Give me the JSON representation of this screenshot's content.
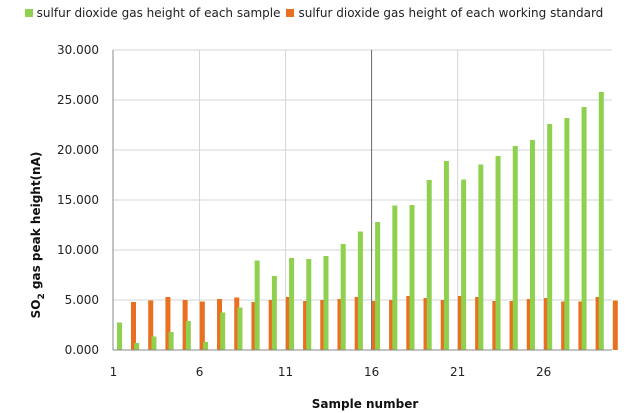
{
  "chart_data": {
    "type": "bar",
    "title": "",
    "xlabel": "Sample number",
    "ylabel_main": "SO",
    "ylabel_sub": "2",
    "ylabel_rest": " gas  peak height(nA)",
    "ylim": [
      0,
      30
    ],
    "yticks": [
      "0.000",
      "5.000",
      "10.000",
      "15.000",
      "20.000",
      "25.000",
      "30.000"
    ],
    "x_tick_labels": [
      "1",
      "6",
      "11",
      "16",
      "21",
      "26"
    ],
    "x_tick_positions": [
      1,
      6,
      11,
      16,
      21,
      26
    ],
    "categories": [
      1,
      2,
      3,
      4,
      5,
      6,
      7,
      8,
      9,
      10,
      11,
      12,
      13,
      14,
      15,
      16,
      17,
      18,
      19,
      20,
      21,
      22,
      23,
      24,
      25,
      26,
      27,
      28,
      29
    ],
    "grid": true,
    "legend_placement": "top",
    "series": [
      {
        "name": "sulfur dioxide gas height of each sample",
        "color": "#8fd14f",
        "values": [
          2.75,
          0.7,
          1.35,
          1.8,
          2.9,
          0.8,
          3.75,
          4.25,
          8.95,
          7.4,
          9.2,
          9.1,
          9.4,
          10.6,
          11.85,
          12.8,
          14.45,
          14.5,
          17.0,
          18.9,
          17.05,
          18.55,
          19.4,
          20.4,
          21.0,
          22.6,
          23.2,
          24.3,
          25.8
        ]
      },
      {
        "name": "sulfur dioxide gas height of each working standard",
        "color": "#e8701f",
        "values": [
          4.8,
          4.95,
          5.3,
          5.0,
          4.85,
          5.1,
          5.25,
          4.8,
          5.0,
          5.3,
          4.9,
          5.0,
          5.1,
          5.3,
          4.9,
          5.0,
          5.4,
          5.2,
          5.0,
          5.4,
          5.3,
          4.9,
          4.9,
          5.1,
          5.2,
          4.85,
          4.85,
          5.3,
          4.95
        ]
      }
    ]
  }
}
